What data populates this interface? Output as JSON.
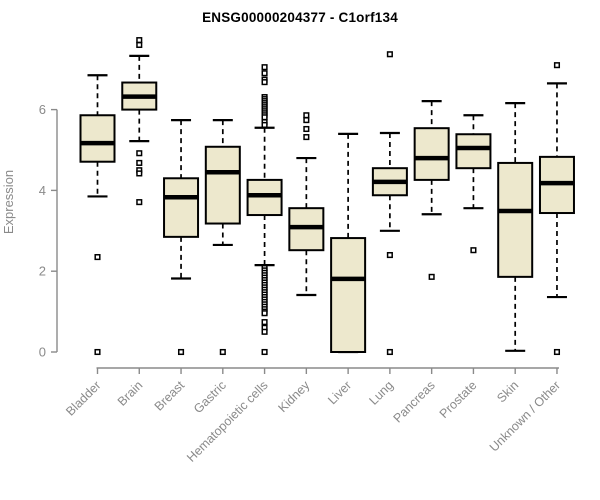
{
  "title": "ENSG00000204377 - C1orf134",
  "colors": {
    "box_fill": "#ede8cd",
    "box_border": "#000000",
    "median": "#000000",
    "whisker": "#000000",
    "axis": "#8a8a8a",
    "tick_label": "#8a8a8a",
    "title": "#000000",
    "background": "#ffffff"
  },
  "chart_data": {
    "type": "boxplot",
    "title": "ENSG00000204377 - C1orf134",
    "xlabel": "",
    "ylabel": "Expression",
    "ylim": [
      0,
      7.8
    ],
    "yticks": [
      0,
      2,
      4,
      6
    ],
    "grid": false,
    "legend": false,
    "categories": [
      "Bladder",
      "Brain",
      "Breast",
      "Gastric",
      "Hematopoietic cells",
      "Kidney",
      "Liver",
      "Lung",
      "Pancreas",
      "Prostate",
      "Skin",
      "Unknown / Other"
    ],
    "series": [
      {
        "name": "Bladder",
        "whisker_low": 3.85,
        "q1": 4.71,
        "median": 5.17,
        "q3": 5.86,
        "whisker_high": 6.85,
        "outliers": [
          2.35,
          0.0
        ]
      },
      {
        "name": "Brain",
        "whisker_low": 5.22,
        "q1": 6.0,
        "median": 6.32,
        "q3": 6.67,
        "whisker_high": 7.33,
        "outliers": [
          7.72,
          7.6,
          4.92,
          4.68,
          4.5,
          4.42,
          3.71
        ]
      },
      {
        "name": "Breast",
        "whisker_low": 1.82,
        "q1": 2.85,
        "median": 3.83,
        "q3": 4.3,
        "whisker_high": 5.74,
        "outliers": [
          0.0
        ]
      },
      {
        "name": "Gastric",
        "whisker_low": 2.65,
        "q1": 3.18,
        "median": 4.45,
        "q3": 5.08,
        "whisker_high": 5.74,
        "outliers": [
          0.0
        ]
      },
      {
        "name": "Hematopoietic cells",
        "whisker_low": 2.15,
        "q1": 3.39,
        "median": 3.88,
        "q3": 4.26,
        "whisker_high": 5.55,
        "outliers": [
          7.05,
          6.9,
          6.74,
          6.68,
          6.31,
          6.26,
          6.21,
          6.16,
          6.11,
          6.06,
          6.01,
          5.96,
          5.91,
          5.86,
          5.81,
          5.69,
          5.62,
          2.08,
          2.02,
          1.96,
          1.9,
          1.84,
          1.78,
          1.72,
          1.66,
          1.6,
          1.54,
          1.48,
          1.42,
          1.36,
          1.3,
          1.24,
          1.18,
          1.12,
          1.06,
          1.0,
          0.96,
          0.74,
          0.6,
          0.5,
          0.0
        ]
      },
      {
        "name": "Kidney",
        "whisker_low": 1.41,
        "q1": 2.52,
        "median": 3.09,
        "q3": 3.56,
        "whisker_high": 4.8,
        "outliers": [
          5.86,
          5.74,
          5.52,
          5.32
        ]
      },
      {
        "name": "Liver",
        "whisker_low": 0.0,
        "q1": 0.0,
        "median": 1.81,
        "q3": 2.82,
        "whisker_high": 5.4,
        "outliers": []
      },
      {
        "name": "Lung",
        "whisker_low": 3.0,
        "q1": 3.88,
        "median": 4.21,
        "q3": 4.55,
        "whisker_high": 5.42,
        "outliers": [
          7.37,
          2.4,
          0.0
        ]
      },
      {
        "name": "Pancreas",
        "whisker_low": 3.41,
        "q1": 4.26,
        "median": 4.8,
        "q3": 5.54,
        "whisker_high": 6.21,
        "outliers": [
          1.86
        ]
      },
      {
        "name": "Prostate",
        "whisker_low": 3.56,
        "q1": 4.55,
        "median": 5.05,
        "q3": 5.39,
        "whisker_high": 5.86,
        "outliers": [
          2.52
        ]
      },
      {
        "name": "Skin",
        "whisker_low": 0.03,
        "q1": 1.86,
        "median": 3.49,
        "q3": 4.68,
        "whisker_high": 6.16,
        "outliers": []
      },
      {
        "name": "Unknown / Other",
        "whisker_low": 1.36,
        "q1": 3.44,
        "median": 4.18,
        "q3": 4.83,
        "whisker_high": 6.65,
        "outliers": [
          7.1,
          0.0
        ]
      }
    ]
  }
}
